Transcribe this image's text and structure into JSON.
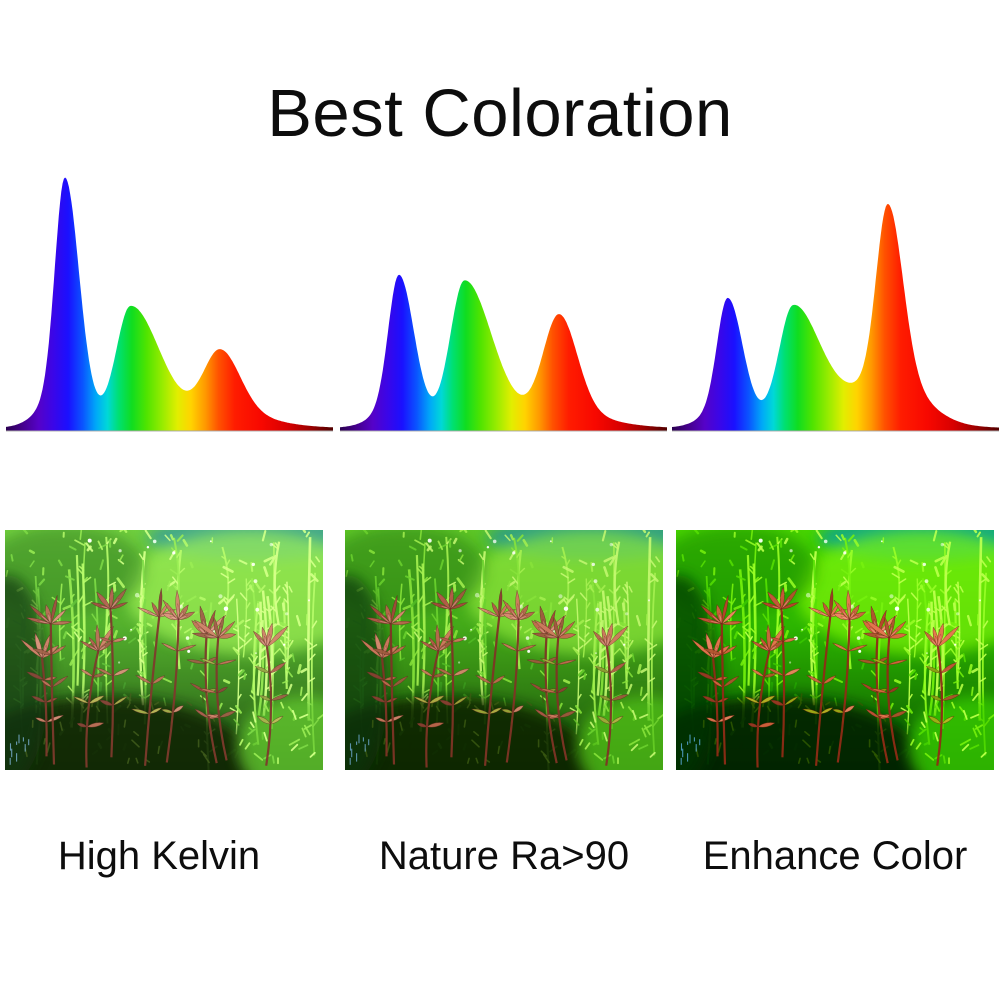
{
  "title": "Best Coloration",
  "panels": [
    {
      "label": "High Kelvin"
    },
    {
      "label": "Nature Ra>90"
    },
    {
      "label": "Enhance Color"
    }
  ],
  "chart_data": {
    "type": "area",
    "title": "Best Coloration",
    "xlabel": "",
    "ylabel": "",
    "grid": false,
    "axes_labeled": false,
    "x_axis_implied": "visible wavelength 380-780 nm (unlabeled)",
    "baseline_color": "#a8a8a8",
    "charts": [
      {
        "name": "High Kelvin",
        "peaks": [
          {
            "band": "blue",
            "wavelength_nm": 452,
            "rel_intensity": 0.97
          },
          {
            "band": "green",
            "wavelength_nm": 532,
            "rel_intensity": 0.47
          },
          {
            "band": "red",
            "wavelength_nm": 642,
            "rel_intensity": 0.3
          }
        ],
        "components": [
          {
            "p": 0.18,
            "h": 0.82,
            "sl": 0.03,
            "sr": 0.042
          },
          {
            "p": 0.18,
            "h": 0.15,
            "sl": 0.065,
            "sr": 0.055
          },
          {
            "p": 0.38,
            "h": 0.4,
            "sl": 0.042,
            "sr": 0.085
          },
          {
            "p": 0.4,
            "h": 0.07,
            "sl": 0.09,
            "sr": 0.13
          },
          {
            "p": 0.655,
            "h": 0.24,
            "sl": 0.05,
            "sr": 0.06
          },
          {
            "p": 0.68,
            "h": 0.05,
            "sl": 0.1,
            "sr": 0.12
          },
          {
            "p": 0.5,
            "h": 0.018,
            "sl": 0.5,
            "sr": 0.5
          }
        ]
      },
      {
        "name": "Nature Ra>90",
        "peaks": [
          {
            "band": "blue",
            "wavelength_nm": 452,
            "rel_intensity": 0.6
          },
          {
            "band": "green",
            "wavelength_nm": 532,
            "rel_intensity": 0.58
          },
          {
            "band": "red",
            "wavelength_nm": 648,
            "rel_intensity": 0.45
          }
        ],
        "components": [
          {
            "p": 0.18,
            "h": 0.5,
            "sl": 0.032,
            "sr": 0.045
          },
          {
            "p": 0.18,
            "h": 0.09,
            "sl": 0.065,
            "sr": 0.055
          },
          {
            "p": 0.38,
            "h": 0.5,
            "sl": 0.042,
            "sr": 0.08
          },
          {
            "p": 0.4,
            "h": 0.07,
            "sl": 0.09,
            "sr": 0.13
          },
          {
            "p": 0.67,
            "h": 0.38,
            "sl": 0.048,
            "sr": 0.055
          },
          {
            "p": 0.69,
            "h": 0.05,
            "sl": 0.1,
            "sr": 0.12
          },
          {
            "p": 0.5,
            "h": 0.018,
            "sl": 0.5,
            "sr": 0.5
          }
        ]
      },
      {
        "name": "Enhance Color",
        "peaks": [
          {
            "band": "blue",
            "wavelength_nm": 448,
            "rel_intensity": 0.51
          },
          {
            "band": "green",
            "wavelength_nm": 528,
            "rel_intensity": 0.48
          },
          {
            "band": "red",
            "wavelength_nm": 644,
            "rel_intensity": 0.88
          }
        ],
        "components": [
          {
            "p": 0.17,
            "h": 0.42,
            "sl": 0.032,
            "sr": 0.045
          },
          {
            "p": 0.17,
            "h": 0.08,
            "sl": 0.065,
            "sr": 0.055
          },
          {
            "p": 0.37,
            "h": 0.4,
            "sl": 0.042,
            "sr": 0.08
          },
          {
            "p": 0.39,
            "h": 0.07,
            "sl": 0.09,
            "sr": 0.13
          },
          {
            "p": 0.66,
            "h": 0.68,
            "sl": 0.035,
            "sr": 0.045
          },
          {
            "p": 0.67,
            "h": 0.18,
            "sl": 0.11,
            "sr": 0.1
          },
          {
            "p": 0.5,
            "h": 0.018,
            "sl": 0.5,
            "sr": 0.5
          }
        ]
      }
    ],
    "gradient_stops": [
      {
        "offset": 0.0,
        "color": "#2a0050"
      },
      {
        "offset": 0.05,
        "color": "#45008c"
      },
      {
        "offset": 0.1,
        "color": "#5502c8"
      },
      {
        "offset": 0.145,
        "color": "#3a06e8"
      },
      {
        "offset": 0.19,
        "color": "#1a10ff"
      },
      {
        "offset": 0.235,
        "color": "#0a55ff"
      },
      {
        "offset": 0.275,
        "color": "#00a8f8"
      },
      {
        "offset": 0.31,
        "color": "#00d8d8"
      },
      {
        "offset": 0.345,
        "color": "#00e070"
      },
      {
        "offset": 0.385,
        "color": "#10dd20"
      },
      {
        "offset": 0.43,
        "color": "#50e400"
      },
      {
        "offset": 0.48,
        "color": "#9aec00"
      },
      {
        "offset": 0.525,
        "color": "#e2ee00"
      },
      {
        "offset": 0.565,
        "color": "#ffd400"
      },
      {
        "offset": 0.61,
        "color": "#ff9800"
      },
      {
        "offset": 0.65,
        "color": "#ff5200"
      },
      {
        "offset": 0.7,
        "color": "#ff1c00"
      },
      {
        "offset": 0.78,
        "color": "#f80800"
      },
      {
        "offset": 0.86,
        "color": "#d80000"
      },
      {
        "offset": 0.93,
        "color": "#9c0000"
      },
      {
        "offset": 1.0,
        "color": "#500000"
      }
    ]
  },
  "photos": [
    {
      "scene": "red stem plants among green aquarium carpet, cool bright rendering",
      "filter": "saturate(0.88) brightness(1.07)"
    },
    {
      "scene": "red stem plants among green aquarium carpet, natural rendering",
      "filter": "saturate(1.04)"
    },
    {
      "scene": "red stem plants among green aquarium carpet, enhanced red rendering",
      "filter": "saturate(1.32) contrast(1.06)"
    }
  ],
  "photo_palette": {
    "greens": [
      "#14380a",
      "#1e5410",
      "#2e7a15",
      "#3f9e22",
      "#55bb2a",
      "#6ed133",
      "#8ae23f",
      "#a7ef55",
      "#c6f876"
    ],
    "reds": [
      "#8a4034",
      "#a04a3c",
      "#b05a4a",
      "#c06a52",
      "#cc7a60",
      "#d68a72",
      "#b4684f",
      "#9c5a40"
    ],
    "olive": [
      "#8a9a34",
      "#a3ab3e",
      "#b7b44a"
    ],
    "stem": "#7c3526",
    "teal": "#2f9b8a",
    "bright": "#8fe53f",
    "dark": "#0c2104",
    "sparkle": "#ffffff",
    "glass": "#7db8e8",
    "leaf_tip_highlight": "#e0a090"
  },
  "colors": {
    "background": "#ffffff",
    "text": "#0d0d0d"
  }
}
